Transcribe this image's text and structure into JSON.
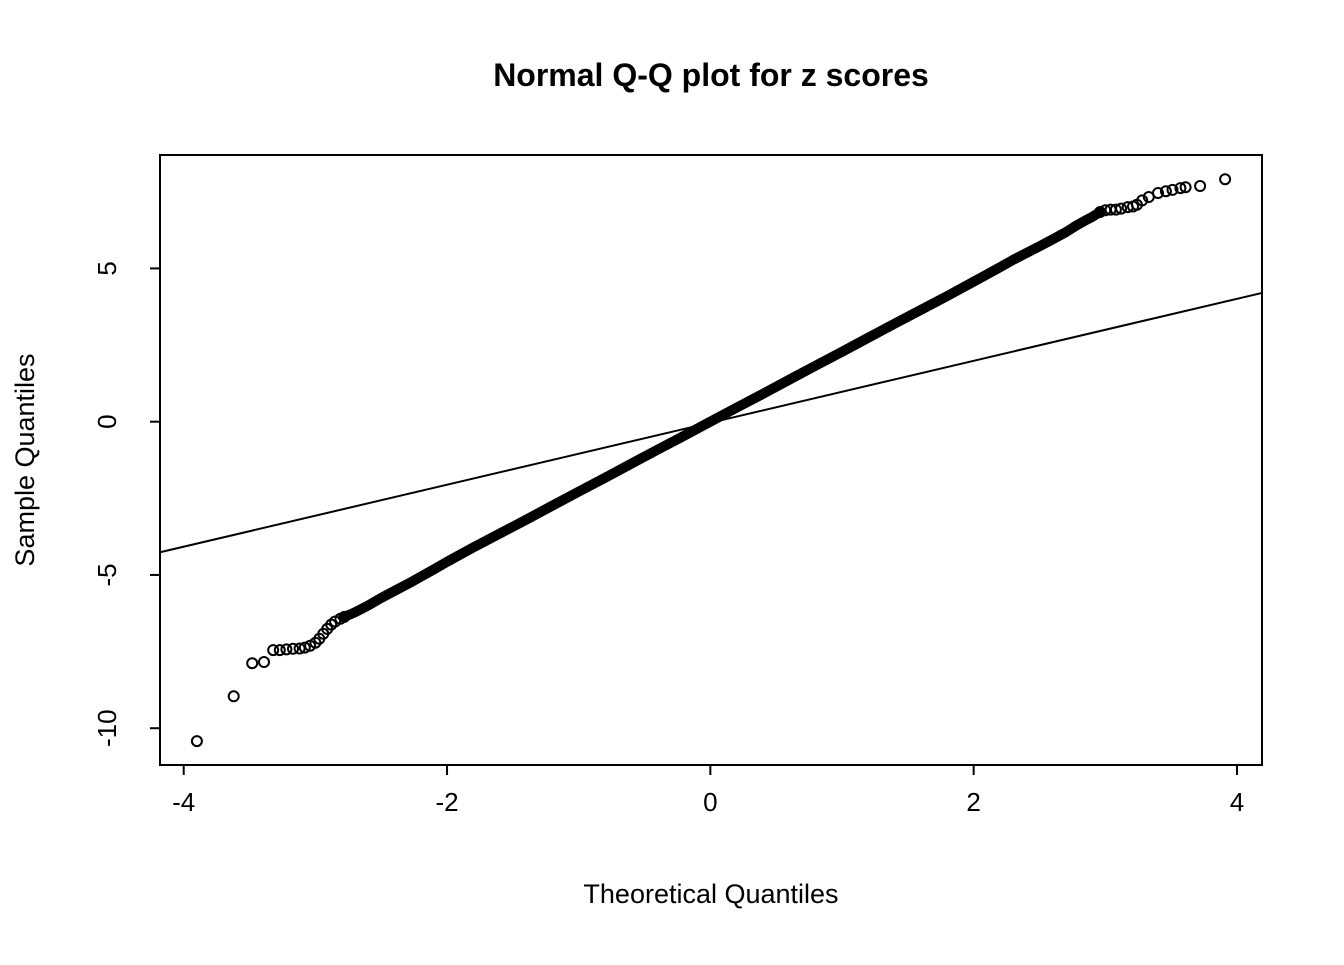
{
  "figure": {
    "background": "#ffffff",
    "foreground": "#000000"
  },
  "chart_data": {
    "type": "scatter",
    "subtype": "normal-qq-plot",
    "title": "Normal Q-Q plot for z scores",
    "xlabel": "Theoretical Quantiles",
    "ylabel": "Sample Quantiles",
    "xlim": [
      -4.18,
      4.19
    ],
    "ylim": [
      -11.2,
      8.7
    ],
    "xticks": [
      -4,
      -2,
      0,
      2,
      4
    ],
    "yticks": [
      -10,
      -5,
      0,
      5
    ],
    "grid": false,
    "legend": "none",
    "point_color": "#000000",
    "marker": "open-circle",
    "reference_line": {
      "description": "qqline reference, slope ~1 through origin",
      "color": "#000000",
      "points": [
        [
          -4.18,
          -4.26
        ],
        [
          4.19,
          4.2
        ]
      ]
    },
    "dense_curve": {
      "description": "heavily overplotted points forming a solid band, slope ~2.28 through origin",
      "points": [
        [
          -2.78,
          -6.37
        ],
        [
          -2.7,
          -6.22
        ],
        [
          -2.6,
          -6.0
        ],
        [
          -2.5,
          -5.75
        ],
        [
          -2.4,
          -5.52
        ],
        [
          -2.3,
          -5.3
        ],
        [
          -2.2,
          -5.06
        ],
        [
          -2.1,
          -4.82
        ],
        [
          -2.0,
          -4.57
        ],
        [
          -1.8,
          -4.1
        ],
        [
          -1.6,
          -3.65
        ],
        [
          -1.4,
          -3.2
        ],
        [
          -1.2,
          -2.74
        ],
        [
          -1.0,
          -2.28
        ],
        [
          -0.8,
          -1.83
        ],
        [
          -0.6,
          -1.37
        ],
        [
          -0.4,
          -0.91
        ],
        [
          -0.2,
          -0.46
        ],
        [
          0.0,
          0.0
        ],
        [
          0.2,
          0.46
        ],
        [
          0.4,
          0.91
        ],
        [
          0.6,
          1.37
        ],
        [
          0.8,
          1.83
        ],
        [
          1.0,
          2.28
        ],
        [
          1.2,
          2.74
        ],
        [
          1.4,
          3.2
        ],
        [
          1.6,
          3.65
        ],
        [
          1.8,
          4.1
        ],
        [
          2.0,
          4.57
        ],
        [
          2.1,
          4.8
        ],
        [
          2.2,
          5.04
        ],
        [
          2.3,
          5.28
        ],
        [
          2.4,
          5.5
        ],
        [
          2.5,
          5.72
        ],
        [
          2.6,
          5.95
        ],
        [
          2.7,
          6.18
        ],
        [
          2.78,
          6.4
        ],
        [
          2.85,
          6.57
        ],
        [
          2.9,
          6.68
        ],
        [
          2.96,
          6.84
        ]
      ]
    },
    "lower_tail_points": [
      [
        -3.9,
        -10.42
      ],
      [
        -3.62,
        -8.96
      ],
      [
        -3.48,
        -7.88
      ],
      [
        -3.39,
        -7.84
      ],
      [
        -3.32,
        -7.45
      ],
      [
        -3.27,
        -7.45
      ],
      [
        -3.22,
        -7.43
      ],
      [
        -3.17,
        -7.41
      ],
      [
        -3.12,
        -7.4
      ],
      [
        -3.08,
        -7.37
      ],
      [
        -3.04,
        -7.31
      ],
      [
        -3.0,
        -7.21
      ],
      [
        -2.97,
        -7.08
      ],
      [
        -2.94,
        -6.92
      ],
      [
        -2.91,
        -6.76
      ],
      [
        -2.88,
        -6.62
      ],
      [
        -2.85,
        -6.52
      ],
      [
        -2.81,
        -6.43
      ],
      [
        -2.78,
        -6.37
      ]
    ],
    "upper_tail_points": [
      [
        2.96,
        6.84
      ],
      [
        3.0,
        6.9
      ],
      [
        3.04,
        6.92
      ],
      [
        3.08,
        6.92
      ],
      [
        3.12,
        6.95
      ],
      [
        3.17,
        7.0
      ],
      [
        3.21,
        7.02
      ],
      [
        3.24,
        7.08
      ],
      [
        3.28,
        7.22
      ],
      [
        3.33,
        7.33
      ],
      [
        3.4,
        7.46
      ],
      [
        3.46,
        7.52
      ],
      [
        3.51,
        7.56
      ],
      [
        3.57,
        7.62
      ],
      [
        3.61,
        7.65
      ],
      [
        3.72,
        7.69
      ],
      [
        3.91,
        7.91
      ]
    ]
  }
}
